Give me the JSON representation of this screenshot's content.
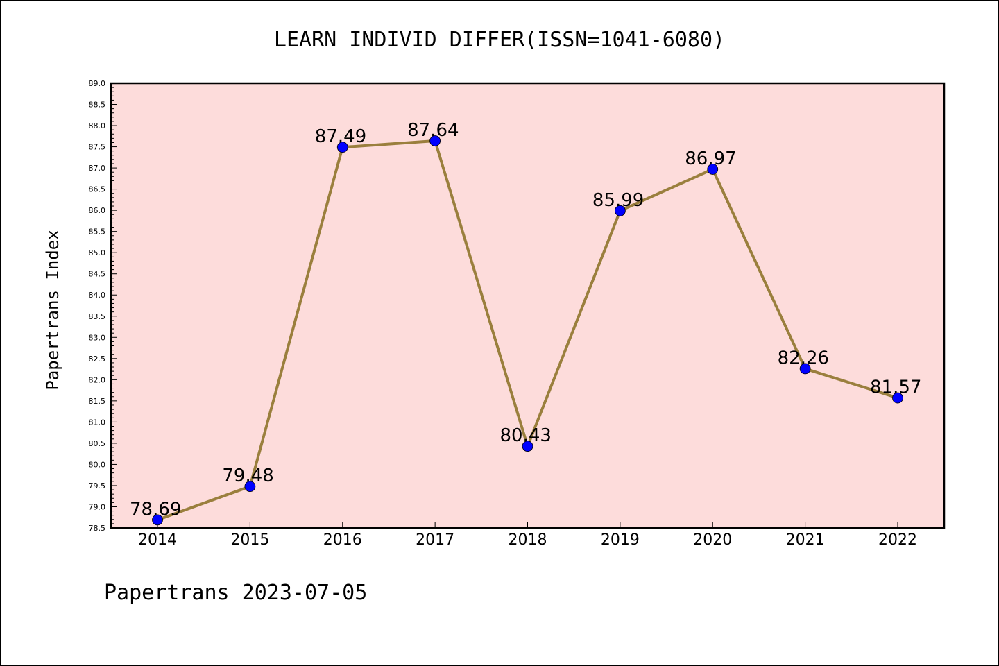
{
  "chart_data": {
    "type": "line",
    "title": "LEARN INDIVID DIFFER(ISSN=1041-6080)",
    "xlabel": "",
    "ylabel": "Papertrans Index",
    "footer": "Papertrans 2023-07-05",
    "categories": [
      "2014",
      "2015",
      "2016",
      "2017",
      "2018",
      "2019",
      "2020",
      "2021",
      "2022"
    ],
    "series": [
      {
        "values": [
          78.69,
          79.48,
          87.49,
          87.64,
          80.43,
          85.99,
          86.97,
          82.26,
          81.57
        ]
      }
    ],
    "data_labels": [
      "78.69",
      "79.48",
      "87.49",
      "87.64",
      "80.43",
      "85.99",
      "86.97",
      "82.26",
      "81.57"
    ],
    "ylim": [
      78.5,
      89.0
    ],
    "yticks": [
      "78.5",
      "79.0",
      "79.5",
      "80.0",
      "80.5",
      "81.0",
      "81.5",
      "82.0",
      "82.5",
      "83.0",
      "83.5",
      "84.0",
      "84.5",
      "85.0",
      "85.5",
      "86.0",
      "86.5",
      "87.0",
      "87.5",
      "88.0",
      "88.5",
      "89.0"
    ],
    "grid": false,
    "colors": {
      "plot_background": "#fddcdb",
      "line": "#9a7f3d",
      "marker": "#0000ff"
    }
  }
}
